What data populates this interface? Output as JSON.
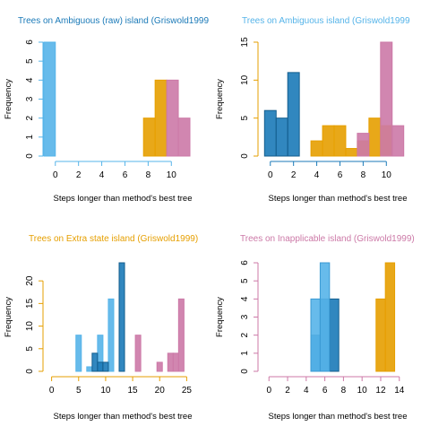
{
  "xlabel": "Steps longer than method's best tree",
  "ylabel": "Frequency",
  "chart_data": [
    {
      "type": "bar",
      "title": "Trees on Ambiguous (raw) island (Griswold1999",
      "title_color": "#1b7ab8",
      "xlim": [
        -0.6,
        11.6
      ],
      "ylim": [
        0,
        6
      ],
      "xticks": [
        0,
        2,
        4,
        6,
        8,
        10
      ],
      "yticks": [
        0,
        1,
        2,
        3,
        4,
        5,
        6
      ],
      "x_axis_color": "#56b4e9",
      "y_axis_color": "#56b4e9",
      "bin_width": 1,
      "series": [
        {
          "fill": "#56b4e9",
          "stroke": "#56b4e9",
          "bins": [
            {
              "x": -1,
              "y": 6
            },
            {
              "x": 0,
              "y": 0
            },
            {
              "x": 1,
              "y": 0
            },
            {
              "x": 2,
              "y": 0
            },
            {
              "x": 3,
              "y": 0
            },
            {
              "x": 4,
              "y": 0
            },
            {
              "x": 5,
              "y": 0
            },
            {
              "x": 6,
              "y": 0
            },
            {
              "x": 7,
              "y": 0
            },
            {
              "x": 8,
              "y": 0
            },
            {
              "x": 9,
              "y": 0
            }
          ]
        },
        {
          "fill": "#e69f00",
          "stroke": "#e69f00",
          "bins": [
            {
              "x": 7.6,
              "y": 2
            },
            {
              "x": 8.6,
              "y": 4
            }
          ]
        },
        {
          "fill": "#cc79a7",
          "stroke": "#cc79a7",
          "bins": [
            {
              "x": 9.6,
              "y": 4
            },
            {
              "x": 10.6,
              "y": 2
            }
          ]
        }
      ]
    },
    {
      "type": "bar",
      "title": "Trees on Ambiguous island (Griswold1999",
      "title_color": "#56b4e9",
      "xlim": [
        -0.6,
        11.6
      ],
      "ylim": [
        0,
        15
      ],
      "xticks": [
        0,
        2,
        4,
        6,
        8,
        10
      ],
      "yticks": [
        0,
        5,
        10,
        15
      ],
      "x_axis_color": "#1b7ab8",
      "y_axis_color": "#e69f00",
      "bin_width": 1,
      "series": [
        {
          "fill": "#1b7ab8",
          "stroke": "#145e8e",
          "bins": [
            {
              "x": -0.5,
              "y": 6
            },
            {
              "x": 0.5,
              "y": 5
            },
            {
              "x": 1.5,
              "y": 11
            }
          ]
        },
        {
          "fill": "#e69f00",
          "stroke": "#e69f00",
          "bins": [
            {
              "x": 3.5,
              "y": 2
            },
            {
              "x": 4.5,
              "y": 4
            },
            {
              "x": 5.5,
              "y": 4
            },
            {
              "x": 6.5,
              "y": 1
            },
            {
              "x": 7.5,
              "y": 2
            },
            {
              "x": 8.5,
              "y": 5
            },
            {
              "x": 9.5,
              "y": 4
            }
          ]
        },
        {
          "fill": "#cc79a7",
          "stroke": "#cc79a7",
          "bins": [
            {
              "x": 7.5,
              "y": 3
            },
            {
              "x": 8.5,
              "y": 0
            },
            {
              "x": 9.5,
              "y": 15
            },
            {
              "x": 10.5,
              "y": 4
            }
          ]
        }
      ]
    },
    {
      "type": "bar",
      "title": "Trees on Extra state island (Griswold1999)",
      "title_color": "#e69f00",
      "xlim": [
        -0.6,
        25.6
      ],
      "ylim": [
        0,
        24
      ],
      "xticks": [
        0,
        5,
        10,
        15,
        20,
        25
      ],
      "yticks": [
        0,
        5,
        10,
        15,
        20
      ],
      "x_axis_color": "#e69f00",
      "y_axis_color": "#e69f00",
      "bin_width": 1,
      "series": [
        {
          "fill": "#cc79a7",
          "stroke": "#cc79a7",
          "bins": [
            {
              "x": -0.5,
              "y": 0
            },
            {
              "x": 0.5,
              "y": 0
            },
            {
              "x": 1.5,
              "y": 0
            },
            {
              "x": 2.5,
              "y": 0
            },
            {
              "x": 3.5,
              "y": 0
            },
            {
              "x": 4.5,
              "y": 0
            },
            {
              "x": 5.5,
              "y": 0
            },
            {
              "x": 6.5,
              "y": 0
            },
            {
              "x": 7.5,
              "y": 0
            },
            {
              "x": 8.5,
              "y": 0
            },
            {
              "x": 9.5,
              "y": 0
            },
            {
              "x": 10.5,
              "y": 0
            },
            {
              "x": 11.5,
              "y": 0
            },
            {
              "x": 12.5,
              "y": 0
            },
            {
              "x": 13.5,
              "y": 0
            },
            {
              "x": 14.5,
              "y": 0
            },
            {
              "x": 15.5,
              "y": 8
            },
            {
              "x": 16.5,
              "y": 0
            },
            {
              "x": 17.5,
              "y": 0
            },
            {
              "x": 18.5,
              "y": 0
            },
            {
              "x": 19.5,
              "y": 2
            },
            {
              "x": 20.5,
              "y": 0
            },
            {
              "x": 21.5,
              "y": 4
            },
            {
              "x": 22.5,
              "y": 4
            },
            {
              "x": 23.5,
              "y": 16
            }
          ]
        },
        {
          "fill": "#56b4e9",
          "stroke": "#56b4e9",
          "bins": [
            {
              "x": 4.5,
              "y": 8
            },
            {
              "x": 6.5,
              "y": 1
            },
            {
              "x": 8.5,
              "y": 8
            },
            {
              "x": 10.5,
              "y": 16
            }
          ]
        },
        {
          "fill": "#1b7ab8",
          "stroke": "#145e8e",
          "bins": [
            {
              "x": 7.5,
              "y": 4
            },
            {
              "x": 8.5,
              "y": 2
            },
            {
              "x": 9.5,
              "y": 2
            },
            {
              "x": 12.5,
              "y": 24
            }
          ]
        }
      ]
    },
    {
      "type": "bar",
      "title": "Trees on Inapplicable island (Griswold1999)",
      "title_color": "#cc79a7",
      "xlim": [
        -0.6,
        14.6
      ],
      "ylim": [
        0,
        6
      ],
      "xticks": [
        0,
        2,
        4,
        6,
        8,
        10,
        12,
        14
      ],
      "yticks": [
        0,
        1,
        2,
        3,
        4,
        5,
        6
      ],
      "x_axis_color": "#cc79a7",
      "y_axis_color": "#cc79a7",
      "bin_width": 1,
      "series": [
        {
          "fill": "#e69f00",
          "stroke": "#e69f00",
          "bins": [
            {
              "x": -0.5,
              "y": 0
            },
            {
              "x": 0.5,
              "y": 0
            },
            {
              "x": 1.5,
              "y": 0
            },
            {
              "x": 2.5,
              "y": 0
            },
            {
              "x": 3.5,
              "y": 0
            },
            {
              "x": 4.5,
              "y": 0
            },
            {
              "x": 5.5,
              "y": 0
            },
            {
              "x": 6.5,
              "y": 0
            },
            {
              "x": 7.5,
              "y": 0
            },
            {
              "x": 8.5,
              "y": 0
            },
            {
              "x": 9.5,
              "y": 0
            },
            {
              "x": 10.5,
              "y": 0
            },
            {
              "x": 11.5,
              "y": 4
            },
            {
              "x": 12.5,
              "y": 6
            }
          ]
        },
        {
          "fill": "#1b7ab8",
          "stroke": "#145e8e",
          "bins": [
            {
              "x": 4.5,
              "y": 2
            },
            {
              "x": 5.5,
              "y": 4
            },
            {
              "x": 6.5,
              "y": 4
            }
          ]
        },
        {
          "fill": "#56b4e9",
          "stroke": "#3a9ad3",
          "bins": [
            {
              "x": 4.5,
              "y": 4
            },
            {
              "x": 5.5,
              "y": 6
            }
          ]
        }
      ]
    }
  ]
}
